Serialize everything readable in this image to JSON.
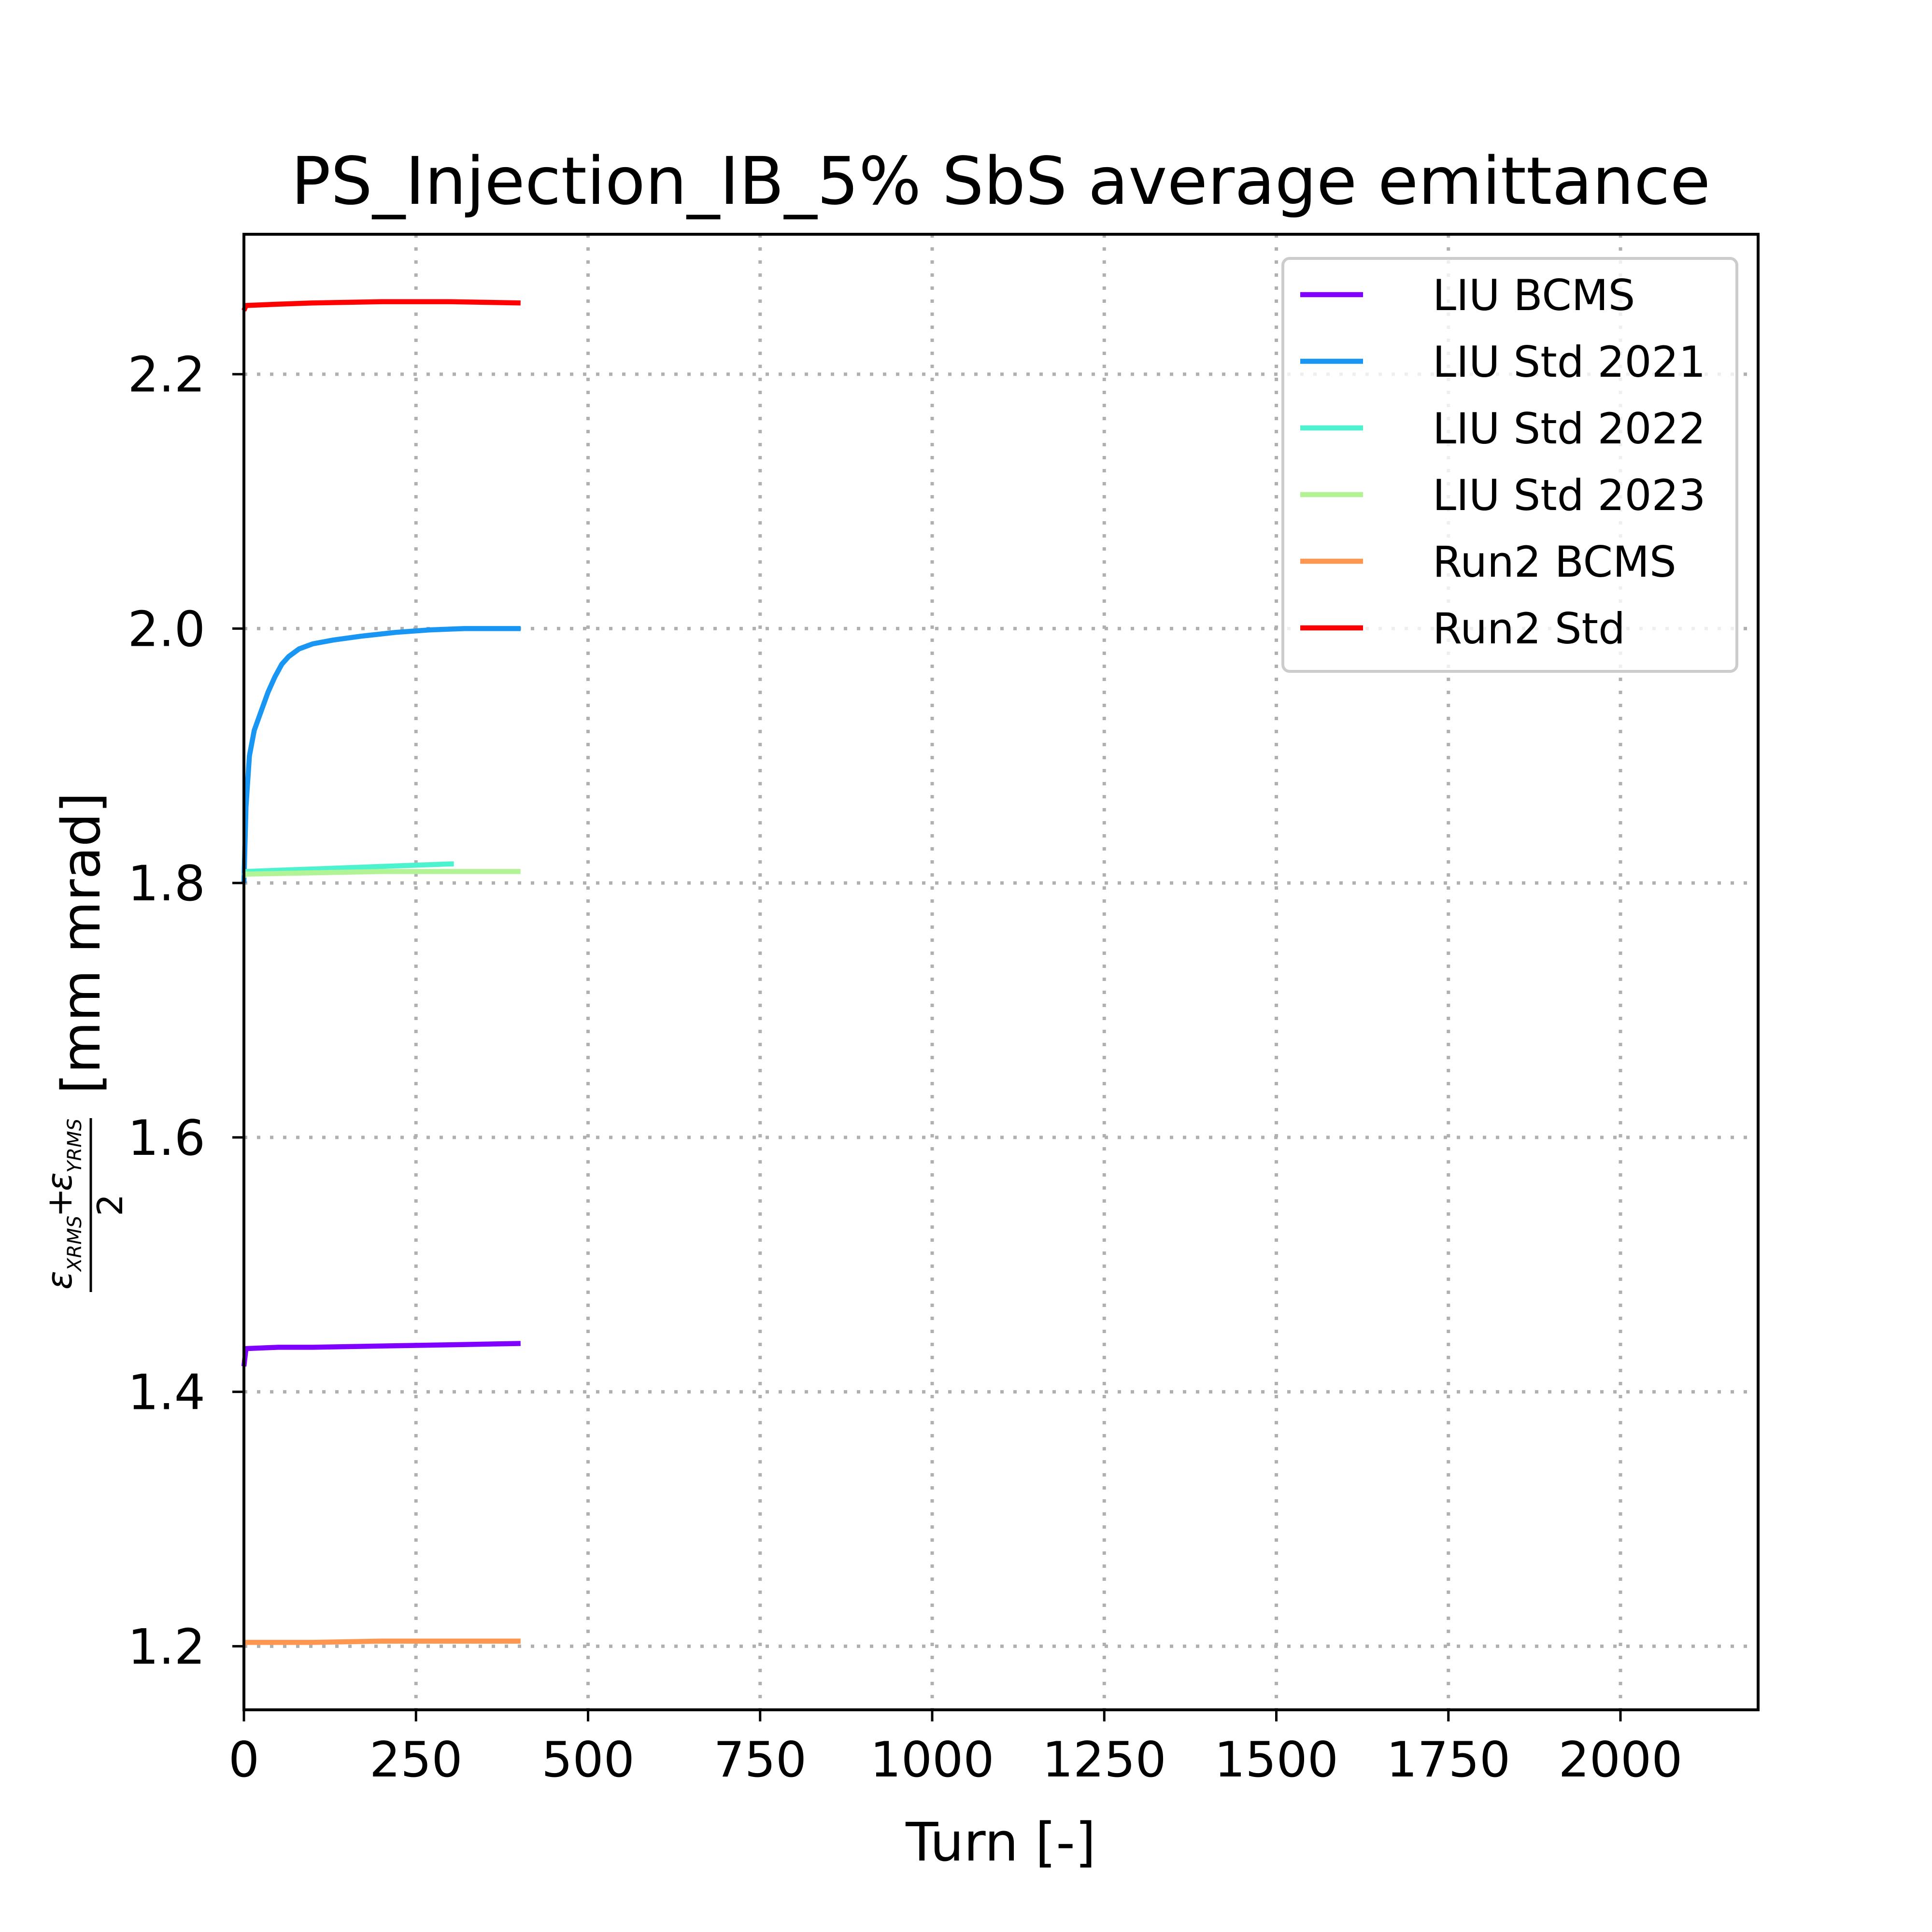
{
  "chart_data": {
    "type": "line",
    "title": "PS_Injection_IB_5% SbS average emittance",
    "xlabel": "Turn [-]",
    "ylabel": {
      "numerator_left_symbol": "ε",
      "numerator_left_sub": "XRMS",
      "plus": "+",
      "numerator_right_symbol": "ε",
      "numerator_right_sub": "YRMS",
      "denominator": "2",
      "units": "[mm mrad]"
    },
    "xlim": [
      0,
      2200
    ],
    "ylim": [
      1.15,
      2.31
    ],
    "xticks": [
      0,
      250,
      500,
      750,
      1000,
      1250,
      1500,
      1750,
      2000
    ],
    "xtick_labels": [
      "0",
      "250",
      "500",
      "750",
      "1000",
      "1250",
      "1500",
      "1750",
      "2000"
    ],
    "yticks": [
      1.2,
      1.4,
      1.6,
      1.8,
      2.0,
      2.2
    ],
    "ytick_labels": [
      "1.2",
      "1.4",
      "1.6",
      "1.8",
      "2.0",
      "2.2"
    ],
    "grid": true,
    "legend_position": "top-right",
    "series": [
      {
        "name": "LIU BCMS",
        "color": "#8000ff",
        "x": [
          0,
          3,
          50,
          100,
          200,
          300,
          402
        ],
        "y": [
          1.42,
          1.434,
          1.435,
          1.435,
          1.436,
          1.437,
          1.438
        ]
      },
      {
        "name": "LIU Std 2021",
        "color": "#1996f3",
        "x": [
          0,
          3,
          8,
          15,
          25,
          35,
          45,
          55,
          65,
          80,
          100,
          130,
          170,
          220,
          270,
          320,
          360,
          402
        ],
        "y": [
          1.8,
          1.86,
          1.9,
          1.92,
          1.935,
          1.95,
          1.962,
          1.972,
          1.978,
          1.984,
          1.988,
          1.991,
          1.994,
          1.997,
          1.999,
          2.0,
          2.0,
          2.0
        ]
      },
      {
        "name": "LIU Std 2022",
        "color": "#4df3ce",
        "x": [
          0,
          3,
          50,
          100,
          150,
          200,
          250,
          300,
          305
        ],
        "y": [
          1.806,
          1.809,
          1.81,
          1.811,
          1.812,
          1.813,
          1.814,
          1.815,
          1.815
        ]
      },
      {
        "name": "LIU Std 2023",
        "color": "#b2f396",
        "x": [
          0,
          3,
          100,
          200,
          300,
          402
        ],
        "y": [
          1.805,
          1.807,
          1.808,
          1.809,
          1.809,
          1.809
        ]
      },
      {
        "name": "Run2 BCMS",
        "color": "#ff964f",
        "x": [
          0,
          3,
          100,
          200,
          300,
          402
        ],
        "y": [
          1.202,
          1.203,
          1.203,
          1.204,
          1.204,
          1.204
        ]
      },
      {
        "name": "Run2 Std",
        "color": "#ff0000",
        "x": [
          0,
          3,
          50,
          100,
          200,
          300,
          402
        ],
        "y": [
          2.25,
          2.254,
          2.255,
          2.256,
          2.257,
          2.257,
          2.256
        ]
      }
    ]
  }
}
